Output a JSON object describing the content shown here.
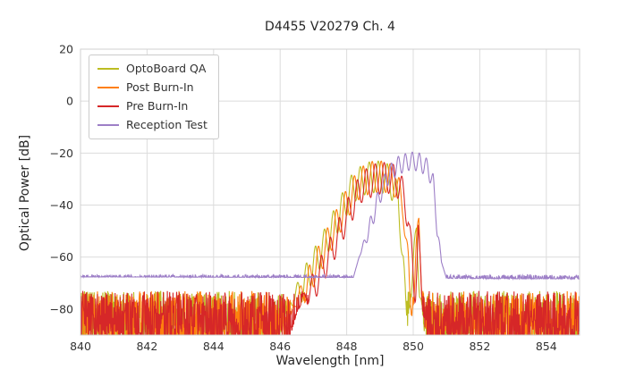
{
  "chart_data": {
    "type": "line",
    "title": "D4455 V20279 Ch. 4",
    "xlabel": "Wavelength [nm]",
    "ylabel": "Optical Power [dB]",
    "xlim": [
      840,
      855
    ],
    "ylim": [
      -90,
      20
    ],
    "xticks": [
      840,
      842,
      844,
      846,
      848,
      850,
      852,
      854
    ],
    "xtick_labels": [
      "840",
      "842",
      "844",
      "846",
      "848",
      "850",
      "852",
      "854"
    ],
    "yticks": [
      20,
      0,
      -20,
      -40,
      -60,
      -80
    ],
    "ytick_labels": [
      "20",
      "0",
      "−20",
      "−40",
      "−60",
      "−80"
    ],
    "grid": true,
    "legend_position": "upper left",
    "series": [
      {
        "name": "OptoBoard QA",
        "color": "#bcbd22",
        "noise_floor": -94,
        "noise_amplitude": 21,
        "ripple_period": 0.27,
        "ripple_phase": 0.0,
        "ripple_depth": 12,
        "ripple_onset": -80,
        "envelope": [
          [
            845.9,
            -95
          ],
          [
            846.3,
            -76
          ],
          [
            846.8,
            -62
          ],
          [
            847.3,
            -50
          ],
          [
            847.8,
            -37
          ],
          [
            848.2,
            -27
          ],
          [
            848.6,
            -23.5
          ],
          [
            849.0,
            -23
          ],
          [
            849.3,
            -24.5
          ],
          [
            849.55,
            -32
          ],
          [
            849.7,
            -55
          ],
          [
            849.82,
            -88
          ],
          [
            850.0,
            -60
          ],
          [
            850.1,
            -42
          ],
          [
            850.22,
            -72
          ],
          [
            850.38,
            -96
          ]
        ]
      },
      {
        "name": "Post Burn-In",
        "color": "#ff7f0e",
        "noise_floor": -94,
        "noise_amplitude": 21,
        "ripple_period": 0.27,
        "ripple_phase": 0.09,
        "ripple_depth": 12,
        "ripple_onset": -80,
        "envelope": [
          [
            846.05,
            -95
          ],
          [
            846.45,
            -76
          ],
          [
            846.95,
            -61
          ],
          [
            847.45,
            -48
          ],
          [
            847.95,
            -35
          ],
          [
            848.35,
            -26
          ],
          [
            848.75,
            -23.2
          ],
          [
            849.15,
            -23
          ],
          [
            849.45,
            -25
          ],
          [
            849.7,
            -34
          ],
          [
            849.85,
            -58
          ],
          [
            849.95,
            -85
          ],
          [
            850.08,
            -55
          ],
          [
            850.17,
            -41
          ],
          [
            850.3,
            -75
          ],
          [
            850.45,
            -96
          ]
        ]
      },
      {
        "name": "Pre Burn-In",
        "color": "#d62728",
        "noise_floor": -94,
        "noise_amplitude": 21,
        "ripple_period": 0.27,
        "ripple_phase": 0.18,
        "ripple_depth": 12,
        "ripple_onset": -80,
        "envelope": [
          [
            846.2,
            -95
          ],
          [
            846.6,
            -77
          ],
          [
            847.1,
            -63
          ],
          [
            847.6,
            -50
          ],
          [
            848.05,
            -37
          ],
          [
            848.45,
            -27
          ],
          [
            848.9,
            -23.8
          ],
          [
            849.3,
            -23.5
          ],
          [
            849.6,
            -26
          ],
          [
            849.85,
            -38
          ],
          [
            850.05,
            -70
          ],
          [
            850.15,
            -43
          ],
          [
            850.28,
            -80
          ],
          [
            850.45,
            -97
          ]
        ]
      },
      {
        "name": "Reception Test",
        "color": "#9d7fc7",
        "noise_floor": -69,
        "noise_amplitude": 2.2,
        "ripple_period": 0.21,
        "ripple_phase": 0.05,
        "ripple_depth": 7,
        "ripple_onset": -60,
        "envelope": [
          [
            840,
            -67.6
          ],
          [
            846,
            -67.8
          ],
          [
            848.2,
            -67.8
          ],
          [
            848.55,
            -52
          ],
          [
            848.9,
            -36
          ],
          [
            849.2,
            -26
          ],
          [
            849.5,
            -21.5
          ],
          [
            849.9,
            -19.5
          ],
          [
            850.2,
            -20
          ],
          [
            850.45,
            -22.5
          ],
          [
            850.6,
            -28
          ],
          [
            850.72,
            -45
          ],
          [
            850.85,
            -62
          ],
          [
            851.0,
            -68.2
          ],
          [
            855,
            -68.4
          ]
        ]
      }
    ]
  }
}
